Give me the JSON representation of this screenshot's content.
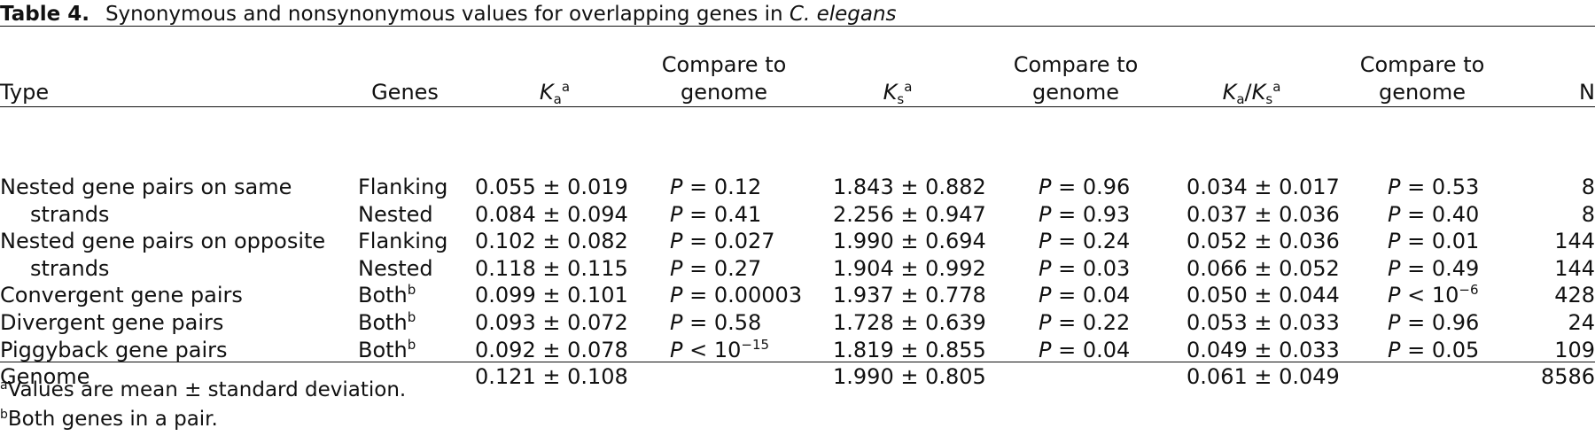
{
  "caption": {
    "table_number": "Table 4.",
    "title_prefix": "Synonymous and nonsynonymous values for overlapping genes in",
    "title_species": "C. elegans"
  },
  "headers": {
    "type": "Type",
    "genes": "Genes",
    "ka_symbol": "K",
    "ka_sub": "a",
    "ka_note": "a",
    "compare1_line1": "Compare to",
    "compare1_line2": "genome",
    "ks_symbol": "K",
    "ks_sub": "s",
    "ks_note": "a",
    "compare2_line1": "Compare to",
    "compare2_line2": "genome",
    "kaks_symbol_a": "K",
    "kaks_sub_a": "a",
    "kaks_slash": "/",
    "kaks_symbol_s": "K",
    "kaks_sub_s": "s",
    "kaks_note": "a",
    "compare3_line1": "Compare to",
    "compare3_line2": "genome",
    "n": "N"
  },
  "rows": [
    {
      "type": "Nested gene pairs on same",
      "genes": "Flanking",
      "genes_note": "",
      "ka": "0.055 ± 0.019",
      "p1": "P = 0.12",
      "ks": "1.843 ± 0.882",
      "p2": "P = 0.96",
      "kaks": "0.034 ± 0.017",
      "p3": "P = 0.53",
      "n": "8"
    },
    {
      "type": "strands",
      "genes": "Nested",
      "genes_note": "",
      "ka": "0.084 ± 0.094",
      "p1": "P = 0.41",
      "ks": "2.256 ± 0.947",
      "p2": "P = 0.93",
      "kaks": "0.037 ± 0.036",
      "p3": "P = 0.40",
      "n": "8"
    },
    {
      "type": "Nested gene pairs on opposite",
      "genes": "Flanking",
      "genes_note": "",
      "ka": "0.102 ± 0.082",
      "p1": "P = 0.027",
      "ks": "1.990 ± 0.694",
      "p2": "P = 0.24",
      "kaks": "0.052 ± 0.036",
      "p3": "P = 0.01",
      "n": "144"
    },
    {
      "type": "strands",
      "genes": "Nested",
      "genes_note": "",
      "ka": "0.118 ± 0.115",
      "p1": "P = 0.27",
      "ks": "1.904 ± 0.992",
      "p2": "P = 0.03",
      "kaks": "0.066 ± 0.052",
      "p3": "P = 0.49",
      "n": "144"
    },
    {
      "type": "Convergent gene pairs",
      "genes": "Both",
      "genes_note": "b",
      "ka": "0.099 ± 0.101",
      "p1": "P = 0.00003",
      "ks": "1.937 ± 0.778",
      "p2": "P = 0.04",
      "kaks": "0.050 ± 0.044",
      "p3": "P < 10",
      "p3_exp": "−6",
      "n": "428"
    },
    {
      "type": "Divergent gene pairs",
      "genes": "Both",
      "genes_note": "b",
      "ka": "0.093 ± 0.072",
      "p1": "P = 0.58",
      "ks": "1.728 ± 0.639",
      "p2": "P = 0.22",
      "kaks": "0.053 ± 0.033",
      "p3": "P = 0.96",
      "n": "24"
    },
    {
      "type": "Piggyback gene pairs",
      "genes": "Both",
      "genes_note": "b",
      "ka": "0.092 ± 0.078",
      "p1": "P < 10",
      "p1_exp": "−15",
      "ks": "1.819 ± 0.855",
      "p2": "P = 0.04",
      "kaks": "0.049 ± 0.033",
      "p3": "P = 0.05",
      "n": "109"
    },
    {
      "type": "Genome",
      "genes": "",
      "genes_note": "",
      "ka": "0.121 ± 0.108",
      "p1": "",
      "ks": "1.990 ± 0.805",
      "p2": "",
      "kaks": "0.061 ± 0.049",
      "p3": "",
      "n": "8586"
    }
  ],
  "footnotes": [
    {
      "mark": "a",
      "text": "Values are mean ± standard deviation."
    },
    {
      "mark": "b",
      "text": "Both genes in a pair."
    }
  ]
}
